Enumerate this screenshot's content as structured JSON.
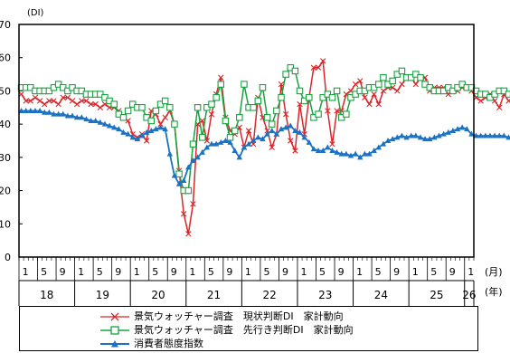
{
  "chart_data": {
    "type": "line",
    "ylabel": "(DI)",
    "ylim": [
      0,
      70
    ],
    "yticks": [
      0,
      10,
      20,
      30,
      40,
      50,
      60,
      70
    ],
    "month_unit": "(月)",
    "year_unit": "(年)",
    "month_tick_labels": [
      "1",
      "5",
      "9",
      "1",
      "5",
      "9",
      "1",
      "5",
      "9",
      "1",
      "5",
      "9",
      "1",
      "5",
      "9",
      "1",
      "5",
      "9",
      "1",
      "5",
      "9",
      "1",
      "5",
      "9",
      "1"
    ],
    "year_labels": [
      "18",
      "19",
      "20",
      "21",
      "22",
      "23",
      "24",
      "25",
      "26"
    ],
    "x_start": "2018-01",
    "grid": false,
    "series": [
      {
        "name": "景気ウォッチャー調査　現状判断DI　家計動向",
        "color": "#d9262a",
        "marker": "x",
        "values": [
          49,
          47,
          47,
          48,
          47,
          46,
          47,
          47,
          46,
          48,
          48,
          47,
          46,
          47,
          47,
          46,
          46,
          45,
          46,
          45,
          45,
          44,
          42,
          41,
          37,
          36,
          37,
          35,
          44,
          43,
          40,
          42,
          44,
          40,
          26,
          13,
          7,
          16,
          40,
          41,
          35,
          43,
          49,
          54,
          42,
          38,
          37,
          39,
          33,
          38,
          34,
          48,
          42,
          38,
          33,
          37,
          52,
          43,
          35,
          32,
          46,
          37,
          48,
          57,
          57,
          59,
          44,
          34,
          44,
          44,
          49,
          50,
          52,
          53,
          48,
          46,
          49,
          46,
          50,
          51,
          51,
          50,
          52,
          54,
          54,
          52,
          54,
          54,
          50,
          51,
          51,
          51,
          49,
          50,
          50,
          51,
          51,
          50,
          48,
          47,
          48,
          49,
          47,
          45,
          49,
          47,
          46,
          47,
          46,
          45,
          43,
          44,
          45,
          46,
          46,
          47,
          47,
          48,
          48,
          48,
          47,
          47,
          48
        ]
      },
      {
        "name": "景気ウォッチャー調査　先行き判断DI　家計動向",
        "color": "#17a340",
        "marker": "square",
        "values": [
          51,
          51,
          51,
          50,
          50,
          50,
          50,
          51,
          52,
          51,
          50,
          51,
          50,
          50,
          49,
          49,
          49,
          49,
          48,
          47,
          46,
          43,
          42,
          44,
          46,
          45,
          45,
          42,
          41,
          44,
          46,
          47,
          45,
          40,
          25,
          20,
          20,
          34,
          45,
          36,
          45,
          46,
          48,
          52,
          41,
          36,
          38,
          42,
          52,
          45,
          45,
          47,
          51,
          42,
          40,
          44,
          48,
          55,
          57,
          56,
          50,
          47,
          48,
          42,
          43,
          48,
          49,
          48,
          50,
          42,
          43,
          48,
          49,
          50,
          50,
          51,
          51,
          52,
          54,
          52,
          53,
          55,
          56,
          54,
          54,
          55,
          54,
          52,
          51,
          50,
          50,
          50,
          51,
          50,
          51,
          52,
          51,
          51,
          50,
          49,
          49,
          48,
          49,
          50,
          50,
          49,
          49,
          48,
          46,
          47,
          47,
          46,
          45,
          44,
          45,
          46,
          47,
          48,
          48,
          50,
          53,
          49,
          49,
          49,
          50,
          50
        ]
      },
      {
        "name": "消費者態度指数",
        "color": "#1a72c4",
        "marker": "triangle",
        "values": [
          44,
          44,
          44,
          44,
          44,
          43.5,
          43.5,
          43,
          43,
          43,
          42.5,
          42.5,
          42,
          42,
          41.5,
          41,
          41,
          40.5,
          40,
          39.5,
          39,
          38.5,
          37.5,
          37,
          36,
          35.5,
          36.5,
          37.5,
          38,
          38.5,
          39,
          38.5,
          31,
          24.5,
          22,
          23,
          27,
          29,
          30,
          31.5,
          33,
          34,
          34,
          34.5,
          35,
          34.5,
          32,
          30,
          33,
          34,
          35,
          36,
          35.5,
          37,
          38,
          37,
          38.5,
          39,
          39.5,
          38,
          37.5,
          36,
          34.5,
          32.5,
          32,
          32,
          33,
          32,
          31.5,
          31,
          31,
          30.5,
          31,
          30,
          31,
          31,
          32,
          33,
          34,
          35,
          35.5,
          36,
          36.5,
          36,
          36.5,
          36.5,
          36,
          35.5,
          35.5,
          36,
          36.5,
          37,
          37.5,
          38,
          38.5,
          39,
          38.5,
          37,
          36.5,
          36.5,
          36.5,
          36.5,
          36.5,
          36.5,
          36.5,
          36,
          36,
          35.5,
          35.5,
          35,
          34.5,
          34.5,
          34,
          33.5,
          33,
          32,
          32.5,
          33,
          33.5,
          34,
          34,
          34.5,
          35,
          35.5,
          36,
          37,
          38,
          37.5,
          37,
          38,
          39.5
        ]
      }
    ]
  }
}
